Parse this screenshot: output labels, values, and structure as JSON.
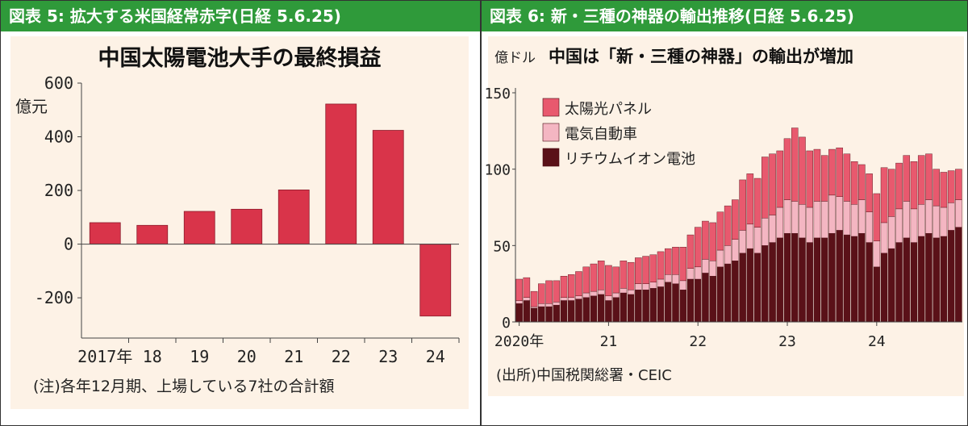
{
  "left_panel": {
    "header": "図表 5: 拡大する米国経常赤字(日経 5.6.25)",
    "chart_data": {
      "type": "bar",
      "title": "中国太陽電池大手の最終損益",
      "ylabel": "億元",
      "ylim": [
        -350,
        600
      ],
      "yticks": [
        "600",
        "400",
        "200",
        "0",
        "-200"
      ],
      "ytick_values": [
        600,
        400,
        200,
        0,
        -200
      ],
      "categories": [
        "2017年",
        "18",
        "19",
        "20",
        "21",
        "22",
        "23",
        "24"
      ],
      "values": [
        80,
        70,
        122,
        130,
        202,
        522,
        424,
        -268
      ],
      "bar_color": "#d9344a",
      "note": "(注)各年12月期、上場している7社の合計額"
    }
  },
  "right_panel": {
    "header": "図表 6: 新・三種の神器の輸出推移(日経 5.6.25)",
    "chart_data": {
      "type": "bar",
      "stacked": true,
      "title": "中国は「新・三種の神器」の輸出が増加",
      "ylabel": "億ドル",
      "ylim": [
        0,
        150
      ],
      "yticks": [
        "150",
        "100",
        "50",
        "0"
      ],
      "ytick_values": [
        150,
        100,
        50,
        0
      ],
      "xtick_labels": [
        "2020年",
        "21",
        "22",
        "23",
        "24"
      ],
      "xtick_index": [
        0,
        12,
        24,
        36,
        48
      ],
      "legend_position": "top-left",
      "series": [
        {
          "name": "リチウムイオン電池",
          "color": "#5a1118",
          "values": [
            12,
            14,
            9,
            10,
            10,
            11,
            14,
            14,
            15,
            16,
            17,
            18,
            14,
            16,
            19,
            18,
            21,
            21,
            22,
            23,
            26,
            25,
            21,
            28,
            28,
            32,
            30,
            36,
            38,
            40,
            45,
            48,
            45,
            50,
            52,
            55,
            58,
            58,
            55,
            52,
            55,
            55,
            58,
            60,
            57,
            56,
            58,
            52,
            36,
            45,
            48,
            52,
            55,
            52,
            56,
            58,
            55,
            56,
            60,
            62
          ]
        },
        {
          "name": "電気自動車",
          "color": "#f4b6c2",
          "values": [
            2,
            2,
            1,
            2,
            2,
            2,
            2,
            2,
            2,
            3,
            3,
            3,
            3,
            3,
            3,
            3,
            4,
            4,
            4,
            5,
            5,
            6,
            6,
            7,
            8,
            9,
            10,
            11,
            12,
            14,
            15,
            16,
            17,
            18,
            18,
            20,
            22,
            21,
            22,
            23,
            24,
            24,
            25,
            22,
            22,
            21,
            22,
            20,
            17,
            20,
            21,
            22,
            24,
            22,
            21,
            22,
            21,
            19,
            18,
            18
          ]
        },
        {
          "name": "太陽光パネル",
          "color": "#e8596e",
          "values": [
            14,
            13,
            10,
            13,
            15,
            14,
            14,
            15,
            16,
            17,
            18,
            19,
            20,
            17,
            18,
            18,
            17,
            18,
            18,
            18,
            17,
            18,
            22,
            22,
            26,
            25,
            25,
            25,
            26,
            26,
            33,
            33,
            32,
            40,
            40,
            37,
            40,
            48,
            44,
            37,
            34,
            30,
            30,
            32,
            31,
            28,
            23,
            25,
            31,
            36,
            31,
            30,
            30,
            31,
            32,
            30,
            24,
            23,
            21,
            20
          ]
        }
      ],
      "note": "(出所)中国税関総署・CEIC"
    }
  }
}
